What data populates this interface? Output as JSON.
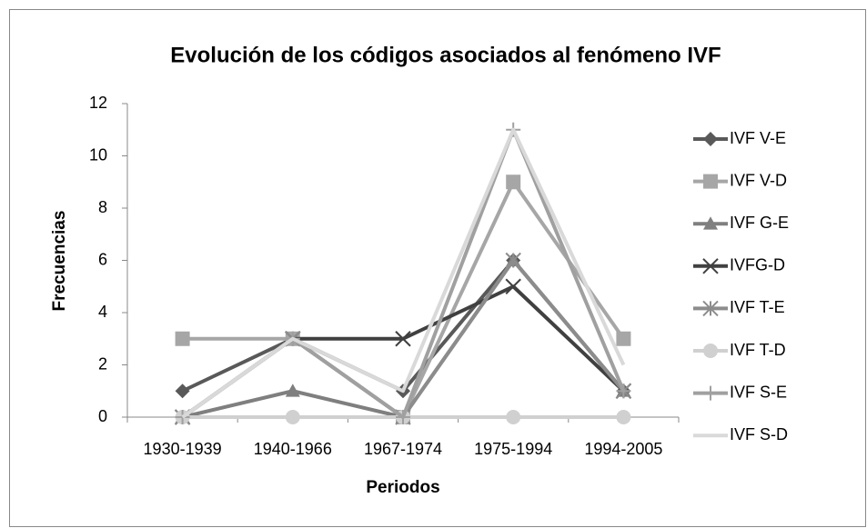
{
  "chart_data": {
    "type": "line",
    "title": "Evolución de los códigos asociados al fenómeno IVF",
    "x_label": "Periodos",
    "y_label": "Frecuencias",
    "categories": [
      "1930-1939",
      "1940-1966",
      "1967-1974",
      "1975-1994",
      "1994-2005"
    ],
    "ylim": [
      0,
      12
    ],
    "yticks": [
      0,
      2,
      4,
      6,
      8,
      10,
      12
    ],
    "grid": false,
    "legend": "right",
    "series": [
      {
        "name": "IVF V-E",
        "color": "#595959",
        "marker": "diamond",
        "values": [
          1,
          3,
          1,
          6,
          1
        ]
      },
      {
        "name": "IVF V-D",
        "color": "#a6a6a6",
        "marker": "square",
        "values": [
          3,
          3,
          0,
          9,
          3
        ]
      },
      {
        "name": "IVF G-E",
        "color": "#7f7f7f",
        "marker": "triangle",
        "values": [
          0,
          1,
          0,
          6,
          1
        ]
      },
      {
        "name": "IVFG-D",
        "color": "#404040",
        "marker": "x",
        "values": [
          0,
          3,
          3,
          5,
          1
        ]
      },
      {
        "name": "IVF T-E",
        "color": "#8c8c8c",
        "marker": "star",
        "values": [
          0,
          3,
          0,
          6,
          1
        ]
      },
      {
        "name": "IVF T-D",
        "color": "#d0d0d0",
        "marker": "circle",
        "values": [
          0,
          0,
          0,
          0,
          0
        ]
      },
      {
        "name": "IVF S-E",
        "color": "#a0a0a0",
        "marker": "plus",
        "values": [
          0,
          3,
          0,
          11,
          1
        ]
      },
      {
        "name": "IVF S-D",
        "color": "#d9d9d9",
        "marker": "none",
        "values": [
          0,
          3,
          1,
          11,
          2
        ]
      }
    ]
  }
}
